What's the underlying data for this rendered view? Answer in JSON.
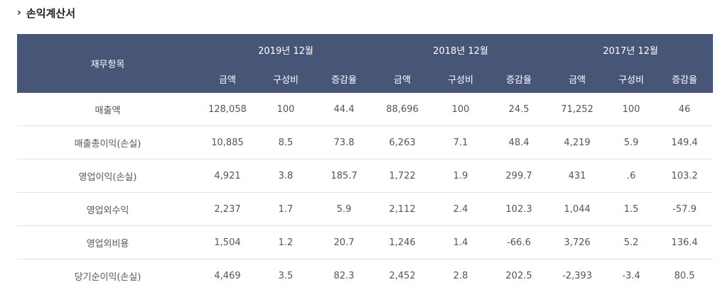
{
  "section": {
    "title": "손익계산서",
    "icon": "chevron-right-icon"
  },
  "table": {
    "item_header": "재무항목",
    "periods": [
      "2019년 12월",
      "2018년 12월",
      "2017년 12월"
    ],
    "subheaders": [
      "금액",
      "구성비",
      "증감율"
    ],
    "rows": [
      {
        "name": "매출액",
        "values": [
          "128,058",
          "100",
          "44.4",
          "88,696",
          "100",
          "24.5",
          "71,252",
          "100",
          "46"
        ]
      },
      {
        "name": "매출총이익(손실)",
        "values": [
          "10,885",
          "8.5",
          "73.8",
          "6,263",
          "7.1",
          "48.4",
          "4,219",
          "5.9",
          "149.4"
        ]
      },
      {
        "name": "영업이익(손실)",
        "values": [
          "4,921",
          "3.8",
          "185.7",
          "1,722",
          "1.9",
          "299.7",
          "431",
          ".6",
          "103.2"
        ]
      },
      {
        "name": "영업외수익",
        "values": [
          "2,237",
          "1.7",
          "5.9",
          "2,112",
          "2.4",
          "102.3",
          "1,044",
          "1.5",
          "-57.9"
        ]
      },
      {
        "name": "영업외비용",
        "values": [
          "1,504",
          "1.2",
          "20.7",
          "1,246",
          "1.4",
          "-66.6",
          "3,726",
          "5.2",
          "136.4"
        ]
      },
      {
        "name": "당기순이익(손실)",
        "values": [
          "4,469",
          "3.5",
          "82.3",
          "2,452",
          "2.8",
          "202.5",
          "-2,393",
          "-3.4",
          "80.5"
        ]
      }
    ]
  },
  "colors": {
    "header_bg": "#475677",
    "header_text": "#ffffff",
    "body_text": "#555555",
    "row_border": "#e2e2e2"
  }
}
